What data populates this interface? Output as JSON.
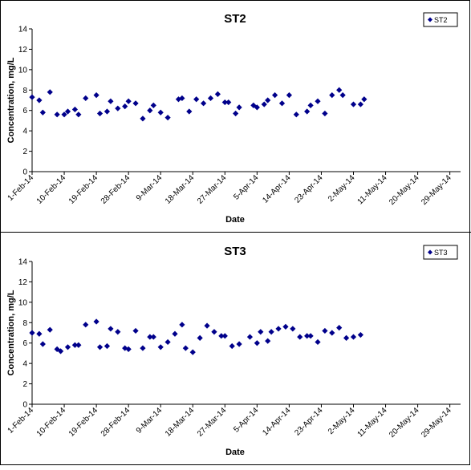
{
  "chart_data": [
    {
      "type": "scatter",
      "title": "ST2",
      "xlabel": "Date",
      "ylabel": "Concentration, mg/L",
      "ylim": [
        0,
        14
      ],
      "yticks": [
        "0",
        "2",
        "4",
        "6",
        "8",
        "10",
        "12",
        "14"
      ],
      "xlim": [
        "2014-02-01",
        "2014-06-01"
      ],
      "xticks": [
        "1-Feb-14",
        "10-Feb-14",
        "19-Feb-14",
        "28-Feb-14",
        "9-Mar-14",
        "18-Mar-14",
        "27-Mar-14",
        "5-Apr-14",
        "14-Apr-14",
        "23-Apr-14",
        "2-May-14",
        "11-May-14",
        "20-May-14",
        "29-May-14"
      ],
      "legend": "top-right",
      "grid": false,
      "marker_color": "#00008B",
      "series": [
        {
          "name": "ST2",
          "points": [
            [
              "2014-02-01",
              7.3
            ],
            [
              "2014-02-03",
              7.0
            ],
            [
              "2014-02-04",
              5.8
            ],
            [
              "2014-02-06",
              7.8
            ],
            [
              "2014-02-08",
              5.6
            ],
            [
              "2014-02-10",
              5.6
            ],
            [
              "2014-02-11",
              5.9
            ],
            [
              "2014-02-13",
              6.1
            ],
            [
              "2014-02-14",
              5.6
            ],
            [
              "2014-02-16",
              7.2
            ],
            [
              "2014-02-19",
              7.5
            ],
            [
              "2014-02-20",
              5.7
            ],
            [
              "2014-02-22",
              5.9
            ],
            [
              "2014-02-23",
              6.9
            ],
            [
              "2014-02-25",
              6.2
            ],
            [
              "2014-02-27",
              6.4
            ],
            [
              "2014-02-28",
              6.9
            ],
            [
              "2014-03-02",
              6.7
            ],
            [
              "2014-03-04",
              5.2
            ],
            [
              "2014-03-06",
              6.0
            ],
            [
              "2014-03-07",
              6.5
            ],
            [
              "2014-03-09",
              5.8
            ],
            [
              "2014-03-11",
              5.3
            ],
            [
              "2014-03-14",
              7.1
            ],
            [
              "2014-03-15",
              7.2
            ],
            [
              "2014-03-17",
              5.9
            ],
            [
              "2014-03-19",
              7.1
            ],
            [
              "2014-03-21",
              6.7
            ],
            [
              "2014-03-23",
              7.2
            ],
            [
              "2014-03-25",
              7.6
            ],
            [
              "2014-03-27",
              6.8
            ],
            [
              "2014-03-28",
              6.8
            ],
            [
              "2014-03-30",
              5.7
            ],
            [
              "2014-03-31",
              6.3
            ],
            [
              "2014-04-04",
              6.5
            ],
            [
              "2014-04-05",
              6.3
            ],
            [
              "2014-04-07",
              6.6
            ],
            [
              "2014-04-08",
              7.0
            ],
            [
              "2014-04-10",
              7.5
            ],
            [
              "2014-04-12",
              6.7
            ],
            [
              "2014-04-14",
              7.5
            ],
            [
              "2014-04-16",
              5.6
            ],
            [
              "2014-04-19",
              5.9
            ],
            [
              "2014-04-20",
              6.5
            ],
            [
              "2014-04-22",
              6.9
            ],
            [
              "2014-04-24",
              5.7
            ],
            [
              "2014-04-26",
              7.5
            ],
            [
              "2014-04-28",
              8.0
            ],
            [
              "2014-04-29",
              7.5
            ],
            [
              "2014-05-02",
              6.6
            ],
            [
              "2014-05-04",
              6.6
            ],
            [
              "2014-05-05",
              7.1
            ]
          ]
        }
      ]
    },
    {
      "type": "scatter",
      "title": "ST3",
      "xlabel": "Date",
      "ylabel": "Concentration, mg/L",
      "ylim": [
        0,
        14
      ],
      "yticks": [
        "0",
        "2",
        "4",
        "6",
        "8",
        "10",
        "12",
        "14"
      ],
      "xlim": [
        "2014-02-01",
        "2014-06-01"
      ],
      "xticks": [
        "1-Feb-14",
        "10-Feb-14",
        "19-Feb-14",
        "28-Feb-14",
        "9-Mar-14",
        "18-Mar-14",
        "27-Mar-14",
        "5-Apr-14",
        "14-Apr-14",
        "23-Apr-14",
        "2-May-14",
        "11-May-14",
        "20-May-14",
        "29-May-14"
      ],
      "legend": "top-right",
      "grid": false,
      "marker_color": "#00008B",
      "series": [
        {
          "name": "ST3",
          "points": [
            [
              "2014-02-01",
              7.0
            ],
            [
              "2014-02-03",
              6.9
            ],
            [
              "2014-02-04",
              5.9
            ],
            [
              "2014-02-06",
              7.3
            ],
            [
              "2014-02-08",
              5.4
            ],
            [
              "2014-02-09",
              5.2
            ],
            [
              "2014-02-11",
              5.6
            ],
            [
              "2014-02-13",
              5.8
            ],
            [
              "2014-02-14",
              5.8
            ],
            [
              "2014-02-16",
              7.8
            ],
            [
              "2014-02-19",
              8.1
            ],
            [
              "2014-02-20",
              5.6
            ],
            [
              "2014-02-22",
              5.7
            ],
            [
              "2014-02-23",
              7.4
            ],
            [
              "2014-02-25",
              7.1
            ],
            [
              "2014-02-27",
              5.5
            ],
            [
              "2014-02-28",
              5.4
            ],
            [
              "2014-03-02",
              7.2
            ],
            [
              "2014-03-04",
              5.5
            ],
            [
              "2014-03-06",
              6.6
            ],
            [
              "2014-03-07",
              6.6
            ],
            [
              "2014-03-09",
              5.6
            ],
            [
              "2014-03-11",
              6.1
            ],
            [
              "2014-03-13",
              6.9
            ],
            [
              "2014-03-15",
              7.8
            ],
            [
              "2014-03-16",
              5.5
            ],
            [
              "2014-03-18",
              5.1
            ],
            [
              "2014-03-20",
              6.5
            ],
            [
              "2014-03-22",
              7.7
            ],
            [
              "2014-03-24",
              7.1
            ],
            [
              "2014-03-26",
              6.7
            ],
            [
              "2014-03-27",
              6.7
            ],
            [
              "2014-03-29",
              5.7
            ],
            [
              "2014-03-31",
              5.9
            ],
            [
              "2014-04-03",
              6.6
            ],
            [
              "2014-04-05",
              6.0
            ],
            [
              "2014-04-06",
              7.1
            ],
            [
              "2014-04-08",
              6.2
            ],
            [
              "2014-04-09",
              7.1
            ],
            [
              "2014-04-11",
              7.4
            ],
            [
              "2014-04-13",
              7.6
            ],
            [
              "2014-04-15",
              7.4
            ],
            [
              "2014-04-17",
              6.6
            ],
            [
              "2014-04-19",
              6.7
            ],
            [
              "2014-04-20",
              6.7
            ],
            [
              "2014-04-22",
              6.1
            ],
            [
              "2014-04-24",
              7.2
            ],
            [
              "2014-04-26",
              7.0
            ],
            [
              "2014-04-28",
              7.5
            ],
            [
              "2014-04-30",
              6.5
            ],
            [
              "2014-05-02",
              6.6
            ],
            [
              "2014-05-04",
              6.8
            ]
          ]
        }
      ]
    }
  ]
}
